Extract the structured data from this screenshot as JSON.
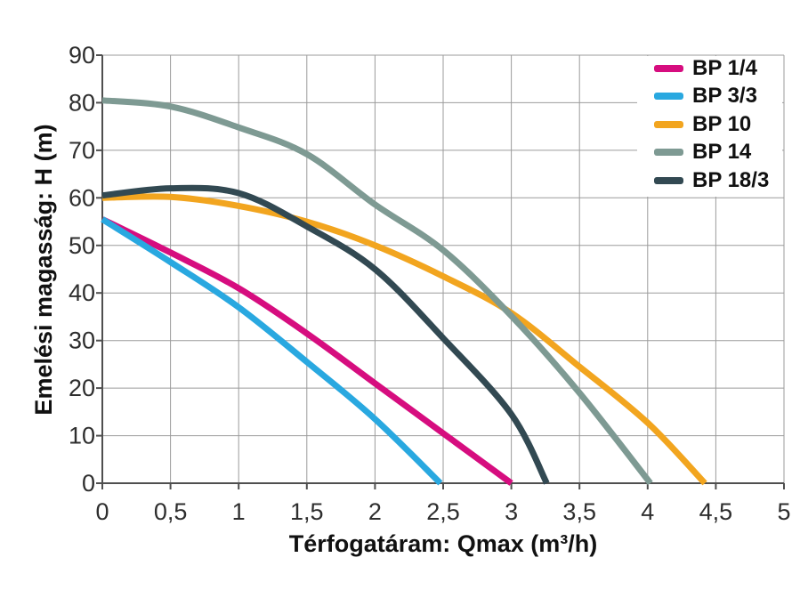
{
  "figure": {
    "background": "#ffffff"
  },
  "chart_data": {
    "type": "line",
    "title": "",
    "xlabel": "Térfogatáram: Qmax (m³/h)",
    "ylabel": "Emelési magasság: H (m)",
    "xlim": [
      0,
      5
    ],
    "ylim": [
      0,
      90
    ],
    "x_ticks": [
      0,
      0.5,
      1,
      1.5,
      2,
      2.5,
      3,
      3.5,
      4,
      4.5,
      5
    ],
    "x_tick_labels": [
      "0",
      "0,5",
      "1",
      "1,5",
      "2",
      "2,5",
      "3",
      "3,5",
      "4",
      "4,5",
      "5"
    ],
    "y_ticks": [
      0,
      10,
      20,
      30,
      40,
      50,
      60,
      70,
      80,
      90
    ],
    "y_tick_labels": [
      "0",
      "10",
      "20",
      "30",
      "40",
      "50",
      "60",
      "70",
      "80",
      "90"
    ],
    "grid": true,
    "grid_color": "#9b9b9b",
    "axis_color": "#4f4f4f",
    "legend_position": "top-right",
    "series": [
      {
        "name": "BP 1/4",
        "color": "#d60d7f",
        "points": [
          [
            0,
            55.5
          ],
          [
            0.5,
            48.5
          ],
          [
            1,
            41
          ],
          [
            1.5,
            31.5
          ],
          [
            2,
            21
          ],
          [
            2.5,
            10.5
          ],
          [
            3,
            0
          ]
        ]
      },
      {
        "name": "BP 3/3",
        "color": "#29a8e0",
        "points": [
          [
            0,
            55.5
          ],
          [
            0.5,
            46.5
          ],
          [
            1,
            37
          ],
          [
            1.5,
            25.5
          ],
          [
            2,
            13.5
          ],
          [
            2.48,
            0
          ]
        ]
      },
      {
        "name": "BP 10",
        "color": "#f2a51f",
        "points": [
          [
            0,
            60
          ],
          [
            0.5,
            60.2
          ],
          [
            1,
            58.3
          ],
          [
            1.5,
            55
          ],
          [
            2,
            50
          ],
          [
            2.5,
            43.5
          ],
          [
            3,
            35.8
          ],
          [
            3.5,
            24.5
          ],
          [
            4,
            12.7
          ],
          [
            4.42,
            0
          ]
        ]
      },
      {
        "name": "BP 14",
        "color": "#7e9a93",
        "points": [
          [
            0,
            80.5
          ],
          [
            0.5,
            79.2
          ],
          [
            1,
            74.8
          ],
          [
            1.5,
            69.2
          ],
          [
            2,
            58.6
          ],
          [
            2.5,
            49
          ],
          [
            3,
            35.2
          ],
          [
            3.5,
            19
          ],
          [
            4.02,
            0
          ]
        ]
      },
      {
        "name": "BP 18/3",
        "color": "#324952",
        "points": [
          [
            0,
            60.5
          ],
          [
            0.5,
            62
          ],
          [
            1,
            61
          ],
          [
            1.5,
            54
          ],
          [
            2,
            45
          ],
          [
            2.5,
            30.5
          ],
          [
            3,
            14.5
          ],
          [
            3.26,
            0
          ]
        ]
      }
    ]
  }
}
